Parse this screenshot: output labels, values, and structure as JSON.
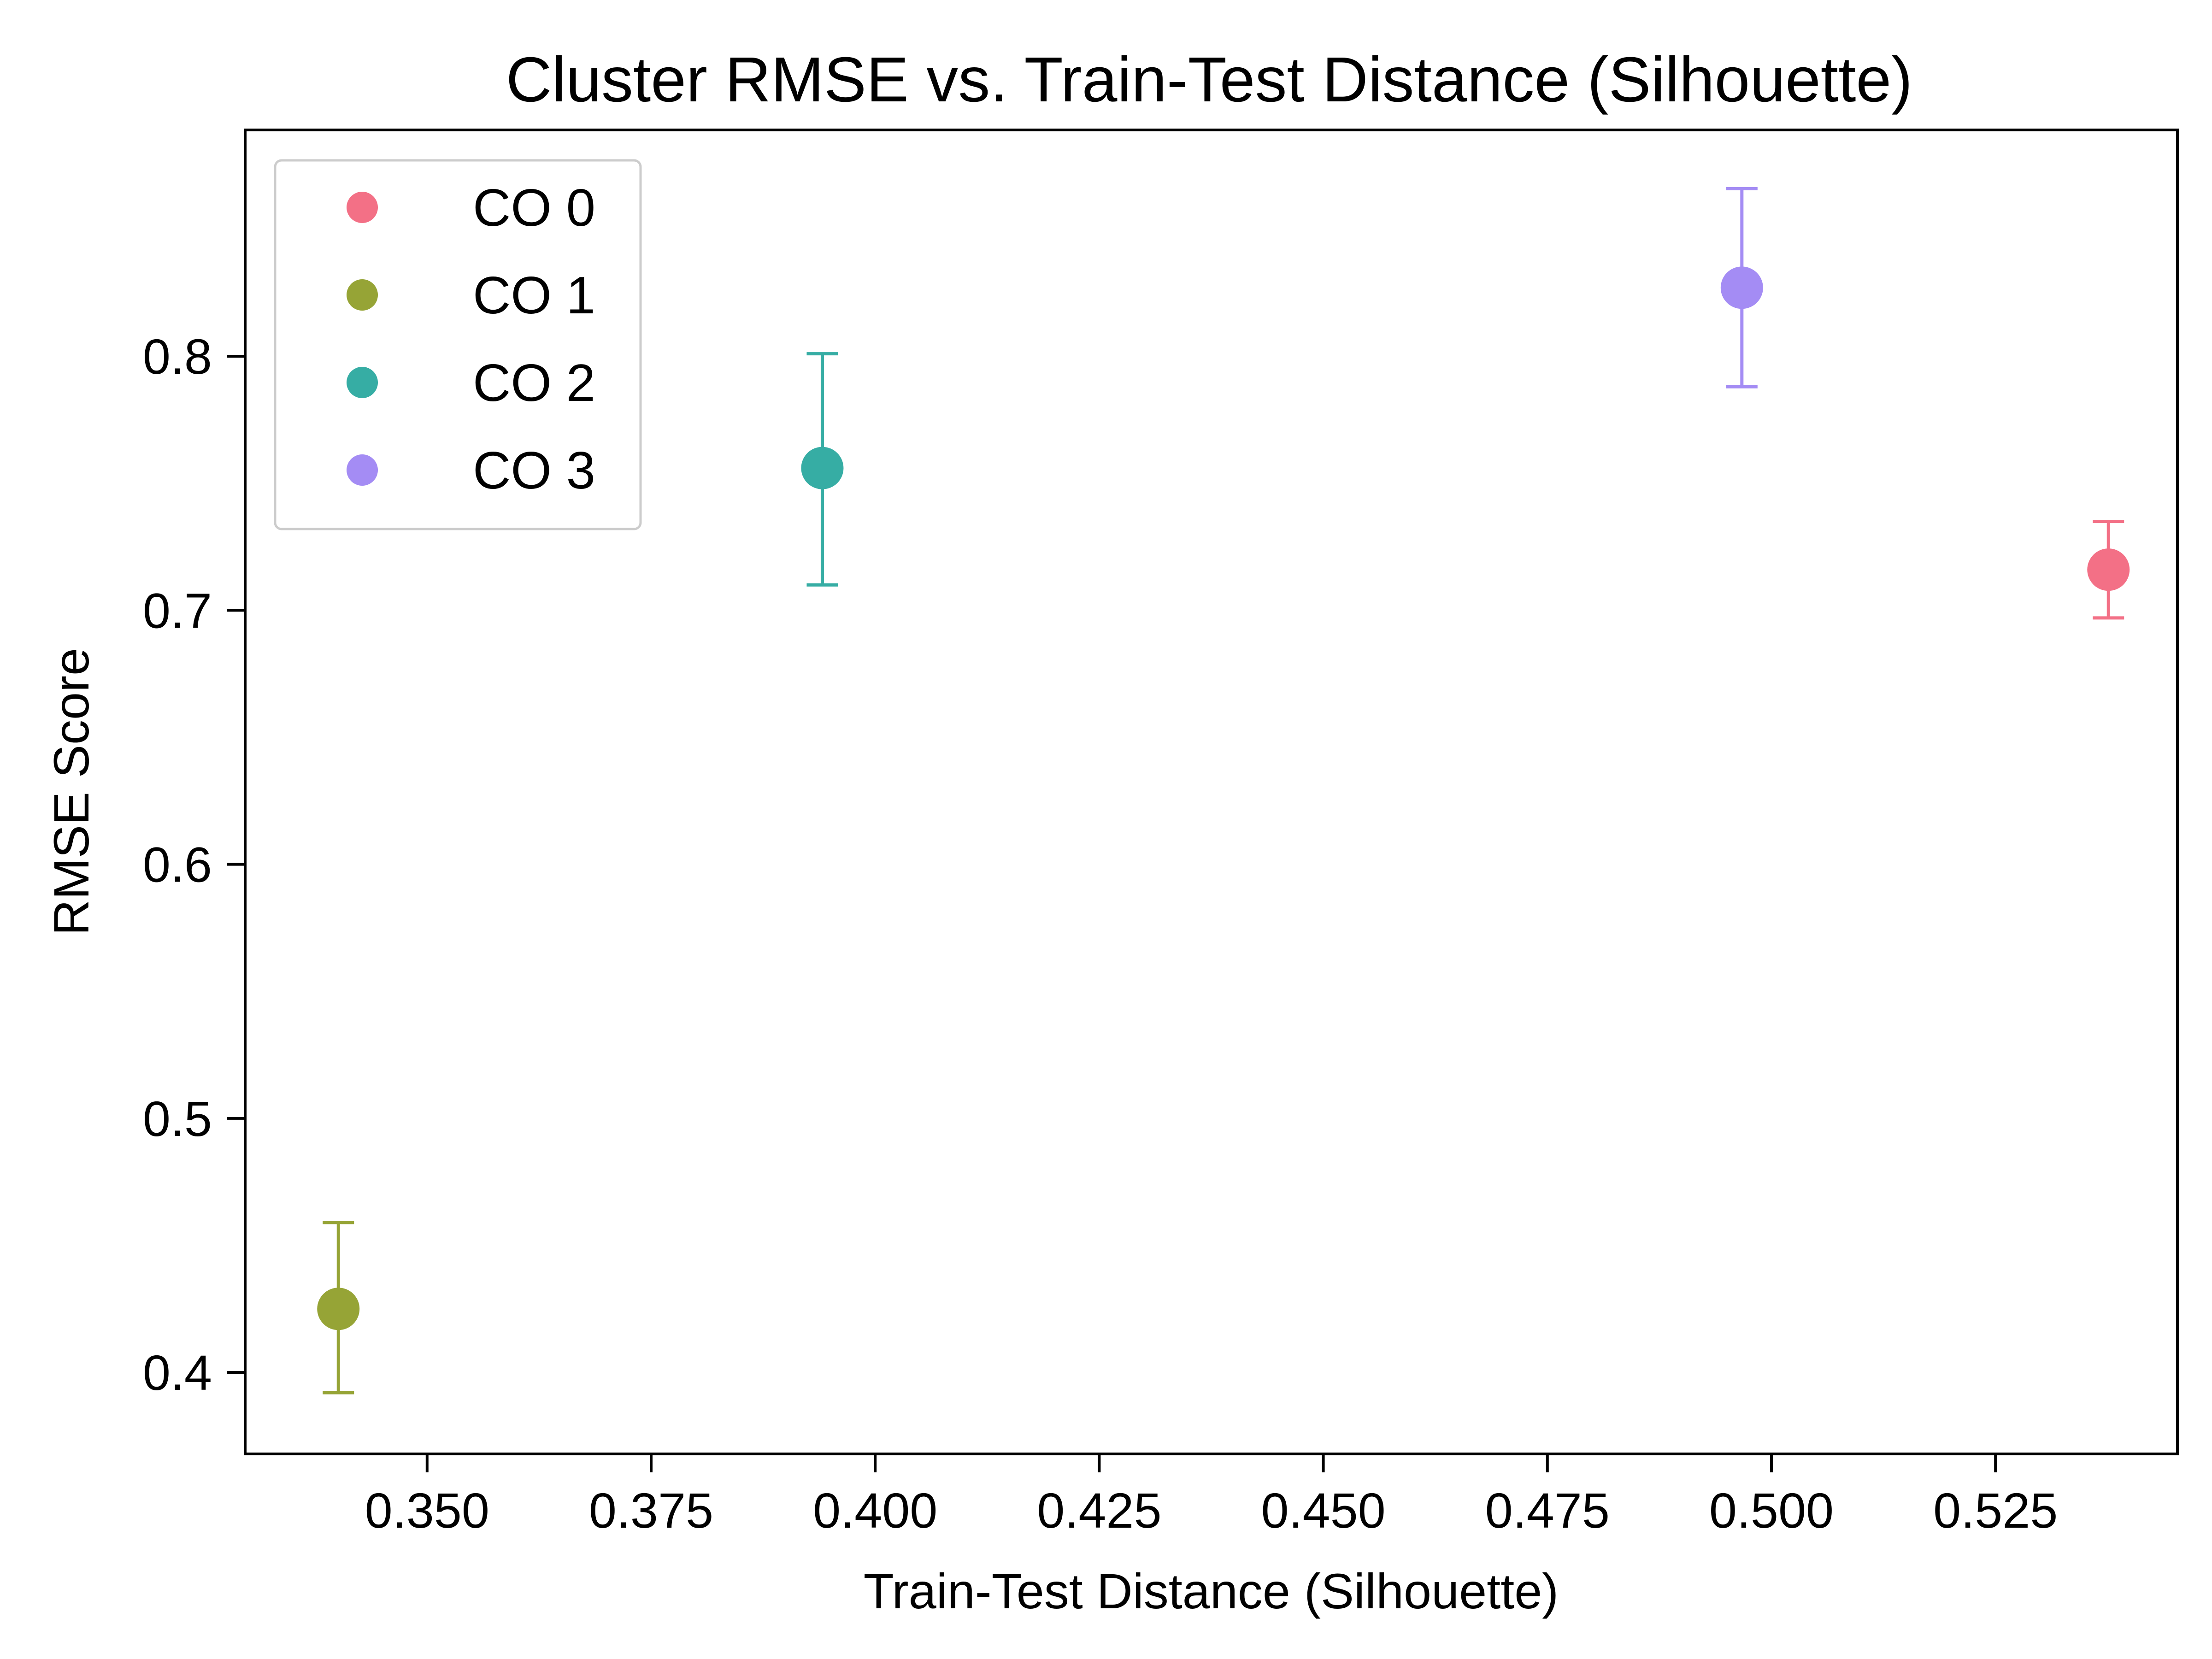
{
  "chart_data": {
    "type": "scatter",
    "title": "Cluster RMSE vs. Train-Test Distance (Silhouette)",
    "xlabel": "Train-Test Distance (Silhouette)",
    "ylabel": "RMSE Score",
    "xlim": [
      0.3297,
      0.5453
    ],
    "ylim": [
      0.3679,
      0.8891
    ],
    "xticks": [
      0.35,
      0.375,
      0.4,
      0.425,
      0.45,
      0.475,
      0.5,
      0.525
    ],
    "xtick_labels": [
      "0.350",
      "0.375",
      "0.400",
      "0.425",
      "0.450",
      "0.475",
      "0.500",
      "0.525"
    ],
    "yticks": [
      0.4,
      0.5,
      0.6,
      0.7,
      0.8
    ],
    "ytick_labels": [
      "0.4",
      "0.5",
      "0.6",
      "0.7",
      "0.8"
    ],
    "grid": false,
    "legend_position": "top-left",
    "series": [
      {
        "name": "CO 0",
        "color": "#f37086",
        "x": 0.5376,
        "y": 0.716,
        "yerr_low": 0.697,
        "yerr_high": 0.735
      },
      {
        "name": "CO 1",
        "color": "#96a436",
        "x": 0.3401,
        "y": 0.425,
        "yerr_low": 0.392,
        "yerr_high": 0.459
      },
      {
        "name": "CO 2",
        "color": "#36ada4",
        "x": 0.3941,
        "y": 0.756,
        "yerr_low": 0.71,
        "yerr_high": 0.801
      },
      {
        "name": "CO 3",
        "color": "#a48cf4",
        "x": 0.4967,
        "y": 0.827,
        "yerr_low": 0.788,
        "yerr_high": 0.866
      }
    ]
  }
}
